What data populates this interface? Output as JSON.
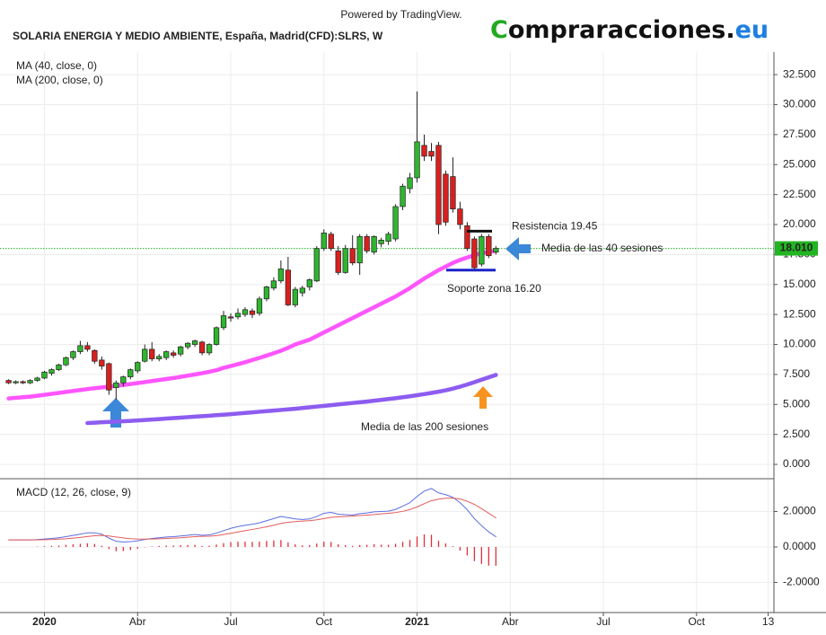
{
  "header": {
    "powered": "Powered by TradingView.",
    "logo": {
      "first": "C",
      "middle": "ompraracciones.",
      "last": "eu"
    }
  },
  "chart_data": [
    {
      "type": "candlestick",
      "title": "SOLARIA ENERGIA Y MEDIO AMBIENTE, España, Madrid(CFD):SLRS, W",
      "x": [
        0,
        1,
        2,
        3,
        4,
        5,
        6,
        7,
        8,
        9,
        10,
        11,
        12,
        13,
        14,
        15,
        16,
        17,
        18,
        19,
        20,
        21,
        22,
        23,
        24,
        25,
        26,
        27,
        28,
        29,
        30,
        31,
        32,
        33,
        34,
        35,
        36,
        37,
        38,
        39,
        40,
        41,
        42,
        43,
        44,
        45,
        46,
        47,
        48,
        49,
        50,
        51,
        52,
        53,
        54,
        55,
        56,
        57,
        58,
        59,
        60,
        61,
        62,
        63,
        64,
        65,
        66,
        67,
        68
      ],
      "open": [
        7.0,
        6.8,
        6.9,
        6.8,
        7.0,
        7.2,
        7.6,
        7.9,
        8.3,
        8.9,
        9.4,
        9.9,
        9.5,
        8.7,
        8.4,
        6.4,
        6.8,
        7.3,
        7.8,
        8.6,
        9.6,
        8.8,
        8.9,
        9.3,
        9.2,
        9.8,
        10.0,
        10.2,
        9.3,
        10.0,
        11.4,
        12.3,
        12.3,
        12.5,
        12.8,
        12.6,
        13.8,
        14.7,
        15.3,
        16.2,
        13.3,
        14.3,
        14.8,
        15.3,
        18.0,
        19.2,
        17.8,
        16.0,
        18.0,
        16.8,
        19.0,
        17.7,
        18.4,
        18.6,
        18.8,
        21.5,
        23.0,
        23.9,
        26.6,
        26.1,
        26.6,
        24.2,
        24.0,
        21.3,
        19.9,
        18.8,
        16.7,
        19.0,
        17.7
      ],
      "high": [
        7.1,
        7.0,
        7.0,
        7.1,
        7.3,
        7.8,
        8.0,
        8.4,
        9.0,
        9.5,
        10.3,
        10.2,
        9.6,
        9.0,
        8.5,
        7.0,
        7.4,
        8.0,
        8.6,
        10.0,
        10.2,
        9.2,
        9.5,
        9.5,
        9.9,
        10.2,
        10.4,
        10.3,
        10.1,
        11.5,
        12.8,
        12.6,
        13.0,
        13.1,
        13.0,
        14.0,
        14.9,
        15.6,
        17.0,
        17.3,
        14.8,
        14.9,
        15.5,
        18.2,
        19.6,
        19.4,
        18.2,
        18.3,
        19.1,
        19.2,
        19.2,
        19.1,
        18.9,
        19.4,
        21.7,
        23.4,
        24.3,
        31.1,
        27.5,
        26.8,
        26.9,
        24.5,
        25.6,
        21.9,
        20.2,
        19.0,
        19.2,
        19.2,
        18.2
      ],
      "low": [
        6.7,
        6.7,
        6.7,
        6.7,
        6.9,
        7.1,
        7.4,
        7.8,
        8.2,
        8.7,
        9.2,
        9.4,
        8.4,
        7.9,
        5.8,
        5.4,
        6.5,
        7.1,
        7.6,
        8.5,
        8.6,
        8.6,
        8.7,
        8.9,
        9.0,
        9.6,
        9.8,
        9.1,
        9.1,
        9.9,
        11.2,
        11.9,
        12.1,
        12.3,
        12.2,
        12.4,
        13.6,
        14.5,
        15.1,
        13.2,
        13.1,
        14.0,
        14.5,
        15.2,
        17.8,
        17.8,
        15.8,
        15.9,
        16.6,
        15.8,
        17.6,
        17.5,
        18.1,
        18.3,
        18.6,
        21.2,
        22.6,
        23.5,
        25.3,
        25.3,
        19.2,
        19.9,
        21.0,
        19.6,
        17.8,
        16.2,
        16.5,
        17.2,
        17.5
      ],
      "close": [
        6.8,
        6.9,
        6.8,
        7.0,
        7.2,
        7.7,
        7.9,
        8.3,
        8.9,
        9.4,
        9.9,
        9.6,
        8.6,
        8.2,
        6.2,
        6.8,
        7.3,
        7.9,
        8.5,
        9.6,
        8.8,
        9.0,
        9.4,
        9.1,
        9.8,
        10.1,
        10.3,
        9.3,
        10.0,
        11.4,
        12.4,
        12.2,
        12.6,
        12.9,
        12.5,
        13.8,
        14.8,
        15.3,
        16.3,
        13.3,
        14.6,
        14.7,
        15.4,
        18.0,
        19.3,
        18.0,
        16.0,
        18.0,
        16.8,
        19.0,
        17.8,
        19.0,
        18.7,
        19.2,
        21.5,
        23.2,
        23.9,
        26.9,
        25.7,
        25.7,
        20.0,
        20.2,
        21.3,
        20.0,
        18.0,
        16.4,
        19.0,
        17.4,
        18.01
      ],
      "up_color": "#2fb52f",
      "down_color": "#d9201f",
      "series": [
        {
          "name": "MA (40, close, 0)",
          "color": "#ff55ff",
          "values": [
            5.5,
            5.55,
            5.6,
            5.65,
            5.72,
            5.8,
            5.88,
            5.96,
            6.04,
            6.12,
            6.2,
            6.28,
            6.35,
            6.42,
            6.48,
            6.55,
            6.62,
            6.7,
            6.78,
            6.86,
            6.95,
            7.04,
            7.12,
            7.2,
            7.3,
            7.4,
            7.5,
            7.6,
            7.72,
            7.85,
            8.05,
            8.2,
            8.36,
            8.52,
            8.7,
            8.88,
            9.07,
            9.27,
            9.48,
            9.72,
            10.0,
            10.2,
            10.4,
            10.7,
            11.0,
            11.3,
            11.6,
            11.9,
            12.2,
            12.5,
            12.8,
            13.1,
            13.4,
            13.7,
            14.0,
            14.35,
            14.7,
            15.1,
            15.5,
            15.85,
            16.2,
            16.5,
            16.8,
            17.05,
            17.25,
            17.45,
            17.6,
            17.72,
            17.82
          ]
        },
        {
          "name": "MA (200, close, 0)",
          "color": "#8d5cf0",
          "values": [
            null,
            null,
            null,
            null,
            null,
            null,
            null,
            null,
            null,
            null,
            null,
            3.45,
            3.48,
            3.51,
            3.54,
            3.57,
            3.6,
            3.63,
            3.66,
            3.7,
            3.74,
            3.78,
            3.82,
            3.86,
            3.9,
            3.94,
            3.98,
            4.02,
            4.06,
            4.1,
            4.14,
            4.19,
            4.24,
            4.29,
            4.34,
            4.39,
            4.44,
            4.49,
            4.54,
            4.59,
            4.64,
            4.7,
            4.76,
            4.82,
            4.88,
            4.94,
            5.0,
            5.06,
            5.12,
            5.18,
            5.24,
            5.31,
            5.38,
            5.45,
            5.52,
            5.6,
            5.68,
            5.77,
            5.86,
            5.96,
            6.06,
            6.18,
            6.32,
            6.48,
            6.66,
            6.86,
            7.06,
            7.26,
            7.46
          ]
        }
      ],
      "last_price": {
        "value": 18.01,
        "label": "18.010"
      },
      "levels": [
        {
          "label": "Resistencia 19.45",
          "value": 19.45
        },
        {
          "label": "Soporte zona 16.20",
          "value": 16.2
        }
      ],
      "annotations": [
        "Media de las 40 sesiones",
        "Media de las 200 sesiones"
      ],
      "xlim": [
        -0.2,
        106.8
      ],
      "ylim": [
        -1.12,
        34.38
      ],
      "yticks": [
        {
          "value": 0,
          "label": "0.000"
        },
        {
          "value": 2.5,
          "label": "2.500"
        },
        {
          "value": 5,
          "label": "5.000"
        },
        {
          "value": 7.5,
          "label": "7.500"
        },
        {
          "value": 10,
          "label": "10.000"
        },
        {
          "value": 12.5,
          "label": "12.500"
        },
        {
          "value": 15,
          "label": "15.000"
        },
        {
          "value": 17.5,
          "label": "17.500"
        },
        {
          "value": 20,
          "label": "20.000"
        },
        {
          "value": 22.5,
          "label": "22.500"
        },
        {
          "value": 25,
          "label": "25.000"
        },
        {
          "value": 27.5,
          "label": "27.500"
        },
        {
          "value": 30,
          "label": "30.000"
        },
        {
          "value": 32.5,
          "label": "32.500"
        }
      ],
      "grid": true
    },
    {
      "type": "macd",
      "title": "MACD (12, 26, close, 9)",
      "series": [
        {
          "color": "#5b6ee1",
          "values": [
            0.4,
            0.4,
            0.4,
            0.4,
            0.42,
            0.45,
            0.48,
            0.52,
            0.58,
            0.65,
            0.72,
            0.8,
            0.8,
            0.72,
            0.5,
            0.32,
            0.28,
            0.3,
            0.35,
            0.42,
            0.48,
            0.52,
            0.56,
            0.58,
            0.62,
            0.66,
            0.7,
            0.66,
            0.68,
            0.78,
            0.92,
            1.05,
            1.15,
            1.22,
            1.28,
            1.36,
            1.48,
            1.6,
            1.72,
            1.65,
            1.58,
            1.55,
            1.58,
            1.72,
            1.9,
            1.95,
            1.85,
            1.82,
            1.8,
            1.88,
            1.92,
            1.98,
            2.0,
            2.02,
            2.12,
            2.3,
            2.5,
            2.85,
            3.15,
            3.3,
            3.05,
            2.95,
            2.8,
            2.5,
            2.1,
            1.6,
            1.2,
            0.85,
            0.58
          ]
        },
        {
          "color": "#e35b5b",
          "values": [
            0.4,
            0.4,
            0.4,
            0.4,
            0.4,
            0.41,
            0.42,
            0.44,
            0.46,
            0.5,
            0.54,
            0.59,
            0.63,
            0.65,
            0.62,
            0.56,
            0.51,
            0.47,
            0.45,
            0.44,
            0.45,
            0.46,
            0.48,
            0.5,
            0.52,
            0.55,
            0.58,
            0.6,
            0.61,
            0.64,
            0.7,
            0.77,
            0.85,
            0.92,
            0.99,
            1.06,
            1.14,
            1.23,
            1.33,
            1.39,
            1.43,
            1.46,
            1.48,
            1.53,
            1.6,
            1.67,
            1.7,
            1.72,
            1.74,
            1.77,
            1.8,
            1.83,
            1.87,
            1.9,
            1.94,
            2.01,
            2.11,
            2.26,
            2.44,
            2.61,
            2.7,
            2.75,
            2.76,
            2.71,
            2.58,
            2.4,
            2.16,
            1.9,
            1.64
          ]
        },
        {
          "color": "#e0303a",
          "style": "histogram",
          "values": [
            0,
            0,
            0,
            0,
            0.02,
            0.04,
            0.06,
            0.08,
            0.12,
            0.15,
            0.18,
            0.21,
            0.17,
            0.07,
            -0.12,
            -0.24,
            -0.23,
            -0.17,
            -0.1,
            -0.02,
            0.03,
            0.06,
            0.08,
            0.08,
            0.1,
            0.11,
            0.12,
            0.06,
            0.07,
            0.14,
            0.22,
            0.28,
            0.3,
            0.3,
            0.29,
            0.3,
            0.34,
            0.37,
            0.39,
            0.26,
            0.15,
            0.09,
            0.1,
            0.19,
            0.3,
            0.28,
            0.15,
            0.1,
            0.06,
            0.11,
            0.12,
            0.15,
            0.13,
            0.12,
            0.18,
            0.29,
            0.39,
            0.59,
            0.71,
            0.69,
            0.35,
            0.2,
            0.04,
            -0.21,
            -0.48,
            -0.8,
            -0.96,
            -1.05,
            -1.06
          ]
        }
      ],
      "xlim": [
        -0.2,
        106.8
      ],
      "xticks": [
        {
          "value": 5,
          "label": "2020"
        },
        {
          "value": 18,
          "label": "Abr"
        },
        {
          "value": 31,
          "label": "Jul"
        },
        {
          "value": 44,
          "label": "Oct"
        },
        {
          "value": 57,
          "label": "2021"
        },
        {
          "value": 70,
          "label": "Abr"
        },
        {
          "value": 83,
          "label": "Jul"
        },
        {
          "value": 96,
          "label": "Oct"
        },
        {
          "value": 106,
          "label": "13"
        }
      ],
      "ylim": [
        -3.7,
        3.85
      ],
      "yticks": [
        {
          "value": -2,
          "label": "-2.0000"
        },
        {
          "value": 0,
          "label": "0.0000"
        },
        {
          "value": 2,
          "label": "2.0000"
        }
      ],
      "grid": true
    }
  ]
}
